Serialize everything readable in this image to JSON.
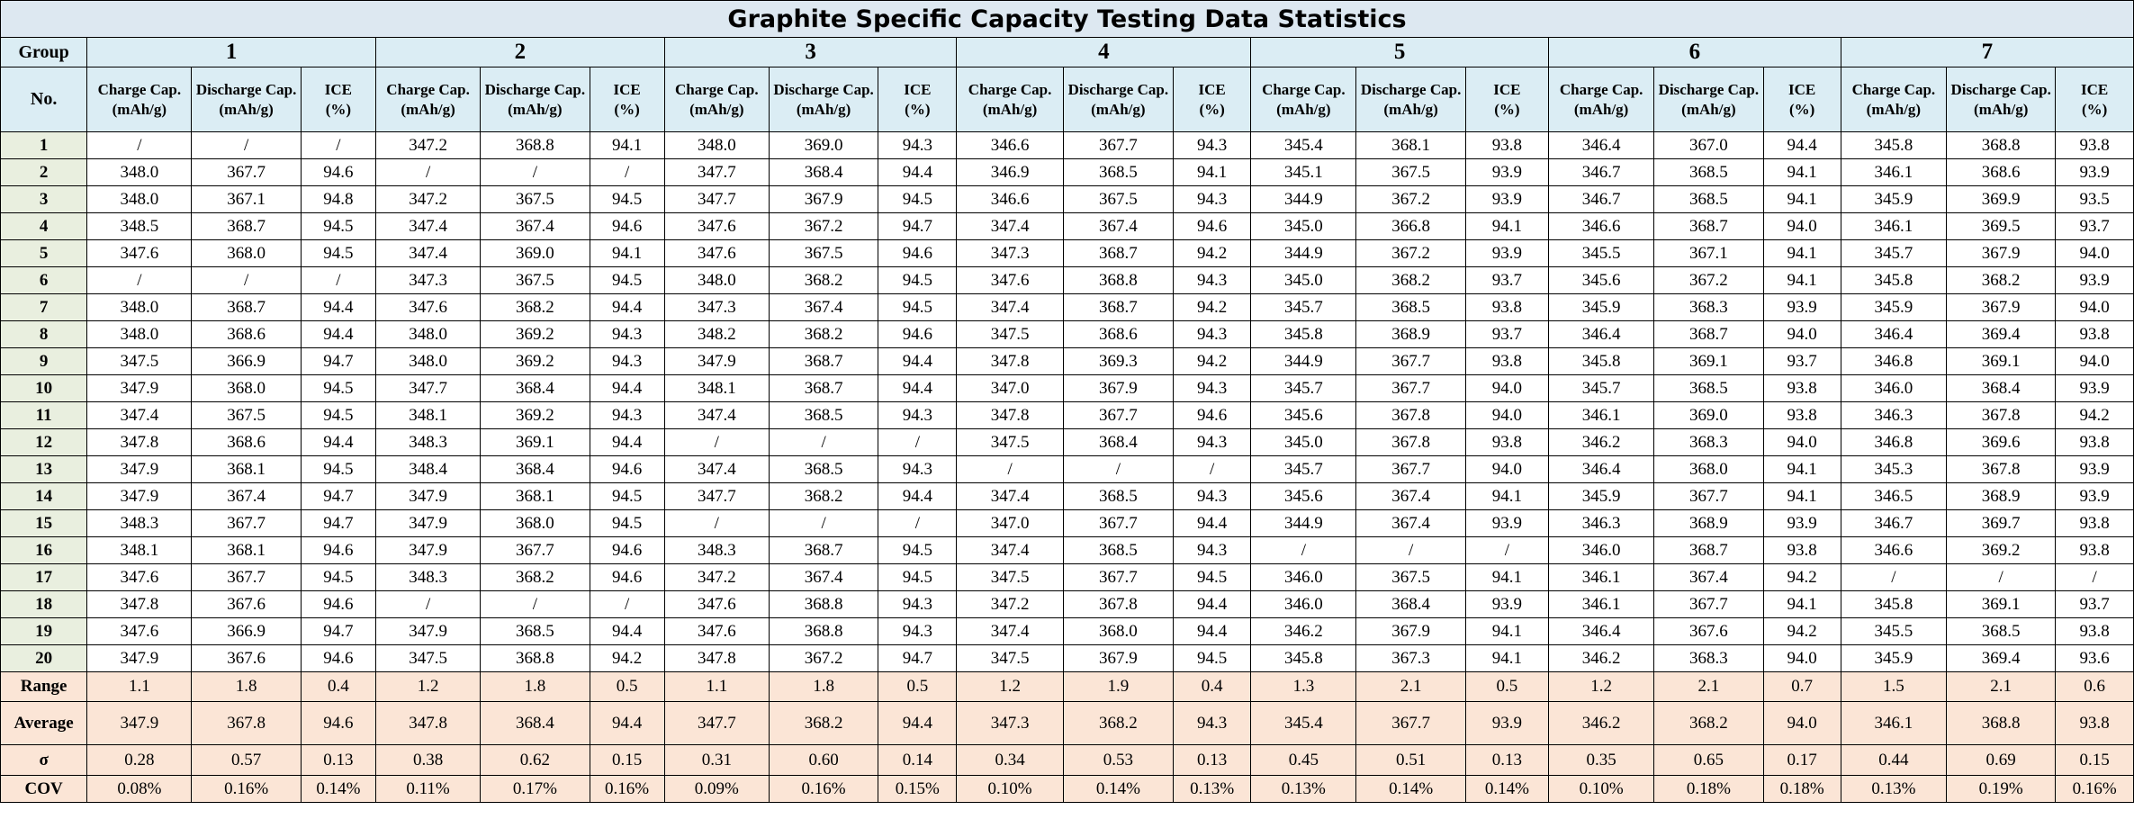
{
  "title": "Graphite Specific Capacity Testing Data Statistics",
  "header": {
    "group_label": "Group",
    "no_label": "No.",
    "columns": [
      {
        "line1": "Charge Cap.",
        "line2": "(mAh/g)"
      },
      {
        "line1": "Discharge Cap.",
        "line2": "(mAh/g)"
      },
      {
        "line1": "ICE",
        "line2": "(%)"
      }
    ]
  },
  "groups": [
    "1",
    "2",
    "3",
    "4",
    "5",
    "6",
    "7"
  ],
  "rows": [
    {
      "no": "1",
      "cells": [
        "/",
        "/",
        "/",
        "347.2",
        "368.8",
        "94.1",
        "348.0",
        "369.0",
        "94.3",
        "346.6",
        "367.7",
        "94.3",
        "345.4",
        "368.1",
        "93.8",
        "346.4",
        "367.0",
        "94.4",
        "345.8",
        "368.8",
        "93.8"
      ]
    },
    {
      "no": "2",
      "cells": [
        "348.0",
        "367.7",
        "94.6",
        "/",
        "/",
        "/",
        "347.7",
        "368.4",
        "94.4",
        "346.9",
        "368.5",
        "94.1",
        "345.1",
        "367.5",
        "93.9",
        "346.7",
        "368.5",
        "94.1",
        "346.1",
        "368.6",
        "93.9"
      ]
    },
    {
      "no": "3",
      "cells": [
        "348.0",
        "367.1",
        "94.8",
        "347.2",
        "367.5",
        "94.5",
        "347.7",
        "367.9",
        "94.5",
        "346.6",
        "367.5",
        "94.3",
        "344.9",
        "367.2",
        "93.9",
        "346.7",
        "368.5",
        "94.1",
        "345.9",
        "369.9",
        "93.5"
      ]
    },
    {
      "no": "4",
      "cells": [
        "348.5",
        "368.7",
        "94.5",
        "347.4",
        "367.4",
        "94.6",
        "347.6",
        "367.2",
        "94.7",
        "347.4",
        "367.4",
        "94.6",
        "345.0",
        "366.8",
        "94.1",
        "346.6",
        "368.7",
        "94.0",
        "346.1",
        "369.5",
        "93.7"
      ]
    },
    {
      "no": "5",
      "cells": [
        "347.6",
        "368.0",
        "94.5",
        "347.4",
        "369.0",
        "94.1",
        "347.6",
        "367.5",
        "94.6",
        "347.3",
        "368.7",
        "94.2",
        "344.9",
        "367.2",
        "93.9",
        "345.5",
        "367.1",
        "94.1",
        "345.7",
        "367.9",
        "94.0"
      ]
    },
    {
      "no": "6",
      "cells": [
        "/",
        "/",
        "/",
        "347.3",
        "367.5",
        "94.5",
        "348.0",
        "368.2",
        "94.5",
        "347.6",
        "368.8",
        "94.3",
        "345.0",
        "368.2",
        "93.7",
        "345.6",
        "367.2",
        "94.1",
        "345.8",
        "368.2",
        "93.9"
      ]
    },
    {
      "no": "7",
      "cells": [
        "348.0",
        "368.7",
        "94.4",
        "347.6",
        "368.2",
        "94.4",
        "347.3",
        "367.4",
        "94.5",
        "347.4",
        "368.7",
        "94.2",
        "345.7",
        "368.5",
        "93.8",
        "345.9",
        "368.3",
        "93.9",
        "345.9",
        "367.9",
        "94.0"
      ]
    },
    {
      "no": "8",
      "cells": [
        "348.0",
        "368.6",
        "94.4",
        "348.0",
        "369.2",
        "94.3",
        "348.2",
        "368.2",
        "94.6",
        "347.5",
        "368.6",
        "94.3",
        "345.8",
        "368.9",
        "93.7",
        "346.4",
        "368.7",
        "94.0",
        "346.4",
        "369.4",
        "93.8"
      ]
    },
    {
      "no": "9",
      "cells": [
        "347.5",
        "366.9",
        "94.7",
        "348.0",
        "369.2",
        "94.3",
        "347.9",
        "368.7",
        "94.4",
        "347.8",
        "369.3",
        "94.2",
        "344.9",
        "367.7",
        "93.8",
        "345.8",
        "369.1",
        "93.7",
        "346.8",
        "369.1",
        "94.0"
      ]
    },
    {
      "no": "10",
      "cells": [
        "347.9",
        "368.0",
        "94.5",
        "347.7",
        "368.4",
        "94.4",
        "348.1",
        "368.7",
        "94.4",
        "347.0",
        "367.9",
        "94.3",
        "345.7",
        "367.7",
        "94.0",
        "345.7",
        "368.5",
        "93.8",
        "346.0",
        "368.4",
        "93.9"
      ]
    },
    {
      "no": "11",
      "cells": [
        "347.4",
        "367.5",
        "94.5",
        "348.1",
        "369.2",
        "94.3",
        "347.4",
        "368.5",
        "94.3",
        "347.8",
        "367.7",
        "94.6",
        "345.6",
        "367.8",
        "94.0",
        "346.1",
        "369.0",
        "93.8",
        "346.3",
        "367.8",
        "94.2"
      ]
    },
    {
      "no": "12",
      "cells": [
        "347.8",
        "368.6",
        "94.4",
        "348.3",
        "369.1",
        "94.4",
        "/",
        "/",
        "/",
        "347.5",
        "368.4",
        "94.3",
        "345.0",
        "367.8",
        "93.8",
        "346.2",
        "368.3",
        "94.0",
        "346.8",
        "369.6",
        "93.8"
      ]
    },
    {
      "no": "13",
      "cells": [
        "347.9",
        "368.1",
        "94.5",
        "348.4",
        "368.4",
        "94.6",
        "347.4",
        "368.5",
        "94.3",
        "/",
        "/",
        "/",
        "345.7",
        "367.7",
        "94.0",
        "346.4",
        "368.0",
        "94.1",
        "345.3",
        "367.8",
        "93.9"
      ]
    },
    {
      "no": "14",
      "cells": [
        "347.9",
        "367.4",
        "94.7",
        "347.9",
        "368.1",
        "94.5",
        "347.7",
        "368.2",
        "94.4",
        "347.4",
        "368.5",
        "94.3",
        "345.6",
        "367.4",
        "94.1",
        "345.9",
        "367.7",
        "94.1",
        "346.5",
        "368.9",
        "93.9"
      ]
    },
    {
      "no": "15",
      "cells": [
        "348.3",
        "367.7",
        "94.7",
        "347.9",
        "368.0",
        "94.5",
        "/",
        "/",
        "/",
        "347.0",
        "367.7",
        "94.4",
        "344.9",
        "367.4",
        "93.9",
        "346.3",
        "368.9",
        "93.9",
        "346.7",
        "369.7",
        "93.8"
      ]
    },
    {
      "no": "16",
      "cells": [
        "348.1",
        "368.1",
        "94.6",
        "347.9",
        "367.7",
        "94.6",
        "348.3",
        "368.7",
        "94.5",
        "347.4",
        "368.5",
        "94.3",
        "/",
        "/",
        "/",
        "346.0",
        "368.7",
        "93.8",
        "346.6",
        "369.2",
        "93.8"
      ]
    },
    {
      "no": "17",
      "cells": [
        "347.6",
        "367.7",
        "94.5",
        "348.3",
        "368.2",
        "94.6",
        "347.2",
        "367.4",
        "94.5",
        "347.5",
        "367.7",
        "94.5",
        "346.0",
        "367.5",
        "94.1",
        "346.1",
        "367.4",
        "94.2",
        "/",
        "/",
        "/"
      ]
    },
    {
      "no": "18",
      "cells": [
        "347.8",
        "367.6",
        "94.6",
        "/",
        "/",
        "/",
        "347.6",
        "368.8",
        "94.3",
        "347.2",
        "367.8",
        "94.4",
        "346.0",
        "368.4",
        "93.9",
        "346.1",
        "367.7",
        "94.1",
        "345.8",
        "369.1",
        "93.7"
      ]
    },
    {
      "no": "19",
      "cells": [
        "347.6",
        "366.9",
        "94.7",
        "347.9",
        "368.5",
        "94.4",
        "347.6",
        "368.8",
        "94.3",
        "347.4",
        "368.0",
        "94.4",
        "346.2",
        "367.9",
        "94.1",
        "346.4",
        "367.6",
        "94.2",
        "345.5",
        "368.5",
        "93.8"
      ]
    },
    {
      "no": "20",
      "cells": [
        "347.9",
        "367.6",
        "94.6",
        "347.5",
        "368.8",
        "94.2",
        "347.8",
        "367.2",
        "94.7",
        "347.5",
        "367.9",
        "94.5",
        "345.8",
        "367.3",
        "94.1",
        "346.2",
        "368.3",
        "94.0",
        "345.9",
        "369.4",
        "93.6"
      ]
    }
  ],
  "stats": [
    {
      "label": "Range",
      "row_class": "h-range",
      "cells": [
        "1.1",
        "1.8",
        "0.4",
        "1.2",
        "1.8",
        "0.5",
        "1.1",
        "1.8",
        "0.5",
        "1.2",
        "1.9",
        "0.4",
        "1.3",
        "2.1",
        "0.5",
        "1.2",
        "2.1",
        "0.7",
        "1.5",
        "2.1",
        "0.6"
      ]
    },
    {
      "label": "Average",
      "row_class": "h-avg",
      "cells": [
        "347.9",
        "367.8",
        "94.6",
        "347.8",
        "368.4",
        "94.4",
        "347.7",
        "368.2",
        "94.4",
        "347.3",
        "368.2",
        "94.3",
        "345.4",
        "367.7",
        "93.9",
        "346.2",
        "368.2",
        "94.0",
        "346.1",
        "368.8",
        "93.8"
      ]
    },
    {
      "label": "σ",
      "row_class": "h-sigma",
      "cells": [
        "0.28",
        "0.57",
        "0.13",
        "0.38",
        "0.62",
        "0.15",
        "0.31",
        "0.60",
        "0.14",
        "0.34",
        "0.53",
        "0.13",
        "0.45",
        "0.51",
        "0.13",
        "0.35",
        "0.65",
        "0.17",
        "0.44",
        "0.69",
        "0.15"
      ]
    },
    {
      "label": "COV",
      "row_class": "h-cov",
      "cells": [
        "0.08%",
        "0.16%",
        "0.14%",
        "0.11%",
        "0.17%",
        "0.16%",
        "0.09%",
        "0.16%",
        "0.15%",
        "0.10%",
        "0.14%",
        "0.13%",
        "0.13%",
        "0.14%",
        "0.14%",
        "0.10%",
        "0.18%",
        "0.18%",
        "0.13%",
        "0.19%",
        "0.16%"
      ]
    }
  ],
  "colors": {
    "title_bg": "#dde8f1",
    "header_bg": "#dbedf4",
    "row_label_bg": "#e9efdf",
    "stats_bg": "#fbe5d6"
  }
}
